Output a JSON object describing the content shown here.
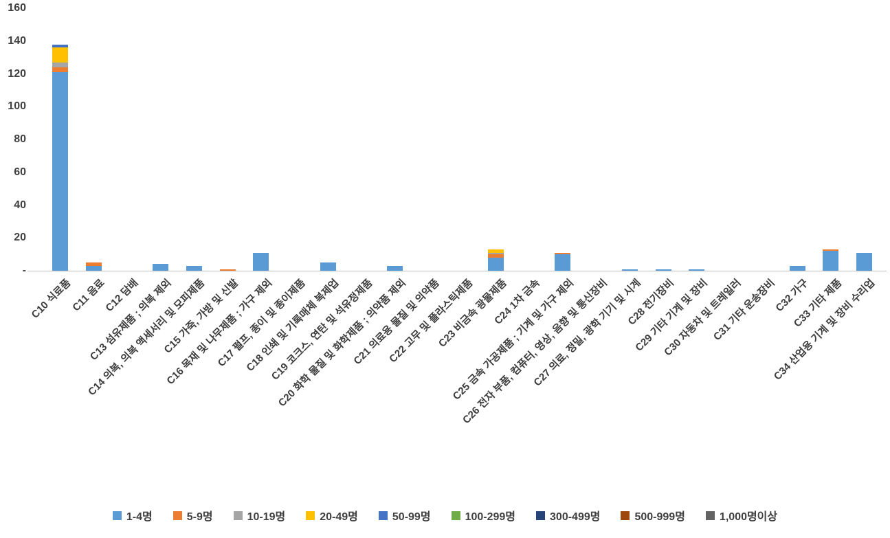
{
  "chart_data": {
    "type": "bar",
    "stacked": true,
    "title": "",
    "xlabel": "",
    "ylabel": "",
    "ylim": [
      0,
      160
    ],
    "grid": false,
    "legend_position": "bottom",
    "ytick_values": [
      0,
      20,
      40,
      60,
      80,
      100,
      120,
      140,
      160
    ],
    "ytick_labels": [
      "-",
      "20",
      "40",
      "60",
      "80",
      "100",
      "120",
      "140",
      "160"
    ],
    "categories": [
      "C10 식료품",
      "C11 음료",
      "C12 담배",
      "C13 섬유제품 ; 의복 제외",
      "C14 의복, 의복 액세서리 및 모피제품",
      "C15 가죽, 가방 및 신발",
      "C16 목재 및 나무제품 ; 가구 제외",
      "C17 펄프, 종이 및 종이제품",
      "C18 인쇄 및 기록매체 복제업",
      "C19 코크스, 연탄 및 석유정제품",
      "C20 화학 물질 및 화학제품 ; 의약품 제외",
      "C21 의료용 물질 및 의약품",
      "C22 고무 및 플라스틱제품",
      "C23 비금속 광물제품",
      "C24 1차 금속",
      "C25 금속 가공제품 ; 기계 및 가구 제외",
      "C26 전자 부품, 컴퓨터, 영상, 음향 및 통신장비",
      "C27 의료, 정밀, 광학 기기 및 시계",
      "C28 전기장비",
      "C29 기타 기계 및 장비",
      "C30 자동차 및 트레일러",
      "C31 기타 운송장비",
      "C32 가구",
      "C33 기타 제품",
      "C34 산업용 기계 및 장비 수리업"
    ],
    "series": [
      {
        "name": "1-4명",
        "color": "#5B9BD5",
        "values": [
          121,
          3,
          0,
          4,
          3,
          0,
          11,
          0,
          5,
          0,
          3,
          0,
          0,
          8,
          0,
          10,
          0,
          1,
          1,
          1,
          0,
          0,
          3,
          12,
          11
        ]
      },
      {
        "name": "5-9명",
        "color": "#ED7D31",
        "values": [
          3,
          2,
          0,
          0,
          0,
          1,
          0,
          0,
          0,
          0,
          0,
          0,
          0,
          2,
          0,
          1,
          0,
          0,
          0,
          0,
          0,
          0,
          0,
          1,
          0
        ]
      },
      {
        "name": "10-19명",
        "color": "#A5A5A5",
        "values": [
          3,
          0,
          0,
          0,
          0,
          0,
          0,
          0,
          0,
          0,
          0,
          0,
          0,
          1,
          0,
          0,
          0,
          0,
          0,
          0,
          0,
          0,
          0,
          0,
          0
        ]
      },
      {
        "name": "20-49명",
        "color": "#FFC000",
        "values": [
          9,
          0,
          0,
          0,
          0,
          0,
          0,
          0,
          0,
          0,
          0,
          0,
          0,
          2,
          0,
          0,
          0,
          0,
          0,
          0,
          0,
          0,
          0,
          0,
          0
        ]
      },
      {
        "name": "50-99명",
        "color": "#4472C4",
        "values": [
          2,
          0,
          0,
          0,
          0,
          0,
          0,
          0,
          0,
          0,
          0,
          0,
          0,
          0,
          0,
          0,
          0,
          0,
          0,
          0,
          0,
          0,
          0,
          0,
          0
        ]
      },
      {
        "name": "100-299명",
        "color": "#70AD47",
        "values": [
          0,
          0,
          0,
          0,
          0,
          0,
          0,
          0,
          0,
          0,
          0,
          0,
          0,
          0,
          0,
          0,
          0,
          0,
          0,
          0,
          0,
          0,
          0,
          0,
          0
        ]
      },
      {
        "name": "300-499명",
        "color": "#264478",
        "values": [
          0,
          0,
          0,
          0,
          0,
          0,
          0,
          0,
          0,
          0,
          0,
          0,
          0,
          0,
          0,
          0,
          0,
          0,
          0,
          0,
          0,
          0,
          0,
          0,
          0
        ]
      },
      {
        "name": "500-999명",
        "color": "#9E480E",
        "values": [
          0,
          0,
          0,
          0,
          0,
          0,
          0,
          0,
          0,
          0,
          0,
          0,
          0,
          0,
          0,
          0,
          0,
          0,
          0,
          0,
          0,
          0,
          0,
          0,
          0
        ]
      },
      {
        "name": "1,000명이상",
        "color": "#636363",
        "values": [
          0,
          0,
          0,
          0,
          0,
          0,
          0,
          0,
          0,
          0,
          0,
          0,
          0,
          0,
          0,
          0,
          0,
          0,
          0,
          0,
          0,
          0,
          0,
          0,
          0
        ]
      }
    ]
  }
}
